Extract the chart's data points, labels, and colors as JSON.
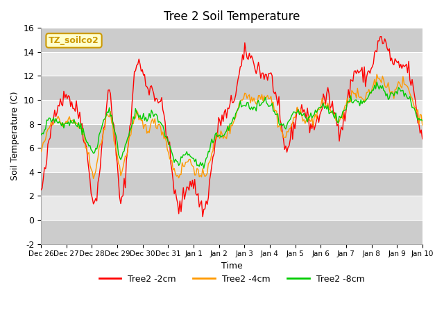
{
  "title": "Tree 2 Soil Temperature",
  "xlabel": "Time",
  "ylabel": "Soil Temperature (C)",
  "ylim": [
    -2,
    16
  ],
  "yticks": [
    -2,
    0,
    2,
    4,
    6,
    8,
    10,
    12,
    14,
    16
  ],
  "annotation_text": "TZ_soilco2",
  "annotation_color": "#cc9900",
  "annotation_bg": "#ffffcc",
  "line_colors": {
    "2cm": "#ff0000",
    "4cm": "#ff9900",
    "8cm": "#00cc00"
  },
  "legend_labels": [
    "Tree2 -2cm",
    "Tree2 -4cm",
    "Tree2 -8cm"
  ],
  "x_tick_labels": [
    "Dec 26",
    "Dec 27",
    "Dec 28",
    "Dec 29",
    "Dec 30",
    "Dec 31",
    "Jan 1",
    "Jan 2",
    "Jan 3",
    "Jan 4",
    "Jan 5",
    "Jan 6",
    "Jan 7",
    "Jan 8",
    "Jan 9"
  ],
  "num_points": 336,
  "seed": 42
}
